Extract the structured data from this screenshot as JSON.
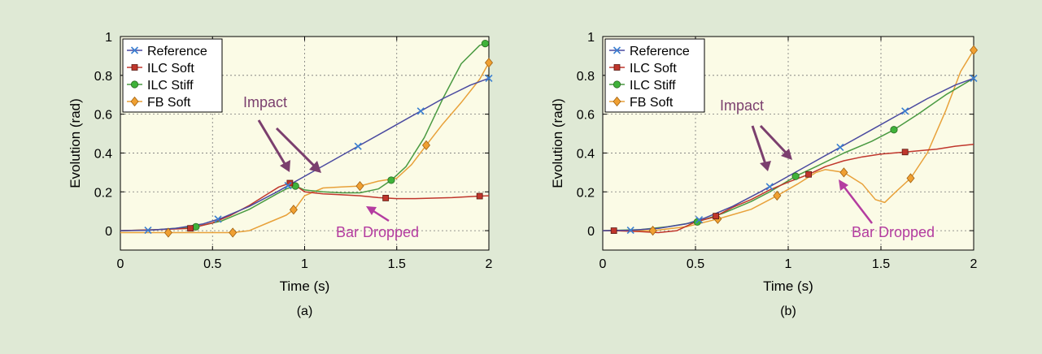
{
  "page": {
    "background": "#dfe9d5",
    "plot_background": "#fbfbe6"
  },
  "chart_data": [
    {
      "type": "line",
      "panel_label": "(a)",
      "xlabel": "Time (s)",
      "ylabel": "Evolution (rad)",
      "xlim": [
        0,
        2
      ],
      "ylim": [
        -0.1,
        1
      ],
      "xticks": [
        0,
        0.5,
        1,
        1.5,
        2
      ],
      "xtick_labels": [
        "0",
        "0.5",
        "1",
        "1.5",
        "2"
      ],
      "yticks": [
        0,
        0.2,
        0.4,
        0.6,
        0.8,
        1
      ],
      "ytick_labels": [
        "0",
        "0.2",
        "0.4",
        "0.6",
        "0.8",
        "1"
      ],
      "grid": true,
      "legend_position": "top-left",
      "series": [
        {
          "name": "Reference",
          "color": "#4a4aa0",
          "marker": "x",
          "marker_color": "#3a7fd0",
          "x": [
            0,
            0.15,
            0.3,
            0.45,
            0.55,
            0.7,
            0.85,
            1.0,
            1.15,
            1.3,
            1.45,
            1.6,
            1.75,
            1.9,
            2.0
          ],
          "y": [
            0,
            0.002,
            0.012,
            0.035,
            0.065,
            0.125,
            0.2,
            0.28,
            0.36,
            0.44,
            0.52,
            0.6,
            0.68,
            0.75,
            0.785
          ],
          "marker_x": [
            0.15,
            0.53,
            0.91,
            1.29,
            1.63,
            2.0
          ]
        },
        {
          "name": "ILC Soft",
          "color": "#c0362c",
          "marker": "square",
          "marker_color": "#c0362c",
          "x": [
            0,
            0.2,
            0.38,
            0.5,
            0.6,
            0.7,
            0.8,
            0.86,
            0.92,
            0.97,
            1.0,
            1.1,
            1.2,
            1.3,
            1.4,
            1.5,
            1.6,
            1.8,
            1.95,
            2.0
          ],
          "y": [
            0,
            0.005,
            0.012,
            0.04,
            0.08,
            0.13,
            0.19,
            0.225,
            0.245,
            0.22,
            0.2,
            0.19,
            0.185,
            0.18,
            0.17,
            0.165,
            0.165,
            0.17,
            0.178,
            0.18
          ],
          "marker_x": [
            0.38,
            0.92,
            1.44,
            1.95
          ]
        },
        {
          "name": "ILC Stiff",
          "color": "#4a9a42",
          "marker": "circle",
          "marker_color": "#3fb23a",
          "x": [
            0,
            0.2,
            0.41,
            0.55,
            0.7,
            0.85,
            0.9,
            0.95,
            1.0,
            1.1,
            1.2,
            1.3,
            1.4,
            1.47,
            1.55,
            1.65,
            1.75,
            1.85,
            1.95,
            2.0
          ],
          "y": [
            0,
            0.005,
            0.02,
            0.05,
            0.11,
            0.19,
            0.215,
            0.23,
            0.21,
            0.2,
            0.195,
            0.195,
            0.215,
            0.26,
            0.33,
            0.48,
            0.68,
            0.86,
            0.955,
            0.97
          ],
          "marker_x": [
            0.41,
            0.95,
            1.47,
            1.98
          ]
        },
        {
          "name": "FB Soft",
          "color": "#e8a13a",
          "marker": "diamond",
          "marker_color": "#f0a032",
          "x": [
            0,
            0.26,
            0.45,
            0.61,
            0.7,
            0.8,
            0.9,
            0.95,
            1.0,
            1.1,
            1.2,
            1.3,
            1.4,
            1.5,
            1.58,
            1.66,
            1.75,
            1.85,
            1.95,
            2.0
          ],
          "y": [
            -0.01,
            -0.01,
            -0.01,
            -0.01,
            0.0,
            0.04,
            0.08,
            0.115,
            0.18,
            0.22,
            0.225,
            0.23,
            0.255,
            0.27,
            0.34,
            0.44,
            0.55,
            0.66,
            0.78,
            0.865
          ],
          "marker_x": [
            0.26,
            0.61,
            0.94,
            1.3,
            1.66,
            2.0
          ]
        }
      ],
      "annotations": [
        {
          "text": "Impact",
          "color": "#7b3f6e",
          "x": 0.95,
          "y": 0.66
        },
        {
          "text": "Bar Dropped",
          "color": "#b43ca0",
          "x": 1.38,
          "y": 0.0
        }
      ]
    },
    {
      "type": "line",
      "panel_label": "(b)",
      "xlabel": "Time (s)",
      "ylabel": "Evolution (rad)",
      "xlim": [
        0,
        2
      ],
      "ylim": [
        -0.1,
        1
      ],
      "xticks": [
        0,
        0.5,
        1,
        1.5,
        2
      ],
      "xtick_labels": [
        "0",
        "0.5",
        "1",
        "1.5",
        "2"
      ],
      "yticks": [
        0,
        0.2,
        0.4,
        0.6,
        0.8,
        1
      ],
      "ytick_labels": [
        "0",
        "0.2",
        "0.4",
        "0.6",
        "0.8",
        "1"
      ],
      "grid": true,
      "legend_position": "top-left",
      "series": [
        {
          "name": "Reference",
          "color": "#4a4aa0",
          "marker": "x",
          "marker_color": "#3a7fd0",
          "x": [
            0,
            0.15,
            0.3,
            0.45,
            0.55,
            0.7,
            0.85,
            1.0,
            1.15,
            1.3,
            1.45,
            1.6,
            1.75,
            1.9,
            2.0
          ],
          "y": [
            0,
            0.002,
            0.012,
            0.035,
            0.065,
            0.125,
            0.2,
            0.28,
            0.36,
            0.44,
            0.52,
            0.6,
            0.68,
            0.75,
            0.785
          ],
          "marker_x": [
            0.15,
            0.52,
            0.9,
            1.28,
            1.63,
            2.0
          ]
        },
        {
          "name": "ILC Soft",
          "color": "#c0362c",
          "marker": "square",
          "marker_color": "#c0362c",
          "x": [
            0,
            0.06,
            0.2,
            0.3,
            0.4,
            0.5,
            0.6,
            0.7,
            0.8,
            0.9,
            1.0,
            1.11,
            1.2,
            1.3,
            1.4,
            1.5,
            1.63,
            1.8,
            1.9,
            2.0
          ],
          "y": [
            0,
            0.0,
            -0.005,
            -0.01,
            0.0,
            0.045,
            0.07,
            0.12,
            0.16,
            0.21,
            0.25,
            0.29,
            0.33,
            0.36,
            0.38,
            0.395,
            0.405,
            0.42,
            0.435,
            0.445
          ],
          "marker_x": [
            0.06,
            0.61,
            1.11,
            1.63
          ]
        },
        {
          "name": "ILC Stiff",
          "color": "#4a9a42",
          "marker": "circle",
          "marker_color": "#3fb23a",
          "x": [
            0,
            0.2,
            0.35,
            0.51,
            0.65,
            0.8,
            0.9,
            1.04,
            1.15,
            1.3,
            1.45,
            1.57,
            1.7,
            1.85,
            2.0
          ],
          "y": [
            0,
            0.005,
            0.02,
            0.045,
            0.09,
            0.15,
            0.2,
            0.28,
            0.33,
            0.4,
            0.46,
            0.52,
            0.6,
            0.7,
            0.785
          ],
          "marker_x": [
            0.51,
            1.04,
            1.57
          ]
        },
        {
          "name": "FB Soft",
          "color": "#e8a13a",
          "marker": "diamond",
          "marker_color": "#f0a032",
          "x": [
            0,
            0.27,
            0.45,
            0.62,
            0.8,
            0.94,
            1.05,
            1.15,
            1.2,
            1.3,
            1.4,
            1.47,
            1.52,
            1.58,
            1.66,
            1.75,
            1.85,
            1.93,
            2.0
          ],
          "y": [
            0,
            0.0,
            0.02,
            0.06,
            0.11,
            0.18,
            0.24,
            0.3,
            0.315,
            0.3,
            0.24,
            0.16,
            0.145,
            0.2,
            0.27,
            0.4,
            0.62,
            0.82,
            0.93
          ],
          "marker_x": [
            0.27,
            0.62,
            0.94,
            1.3,
            1.66,
            2.0
          ]
        }
      ],
      "annotations": [
        {
          "text": "Impact",
          "color": "#7b3f6e",
          "x": 0.95,
          "y": 0.66
        },
        {
          "text": "Bar Dropped",
          "color": "#b43ca0",
          "x": 1.37,
          "y": 0.0
        }
      ]
    }
  ]
}
